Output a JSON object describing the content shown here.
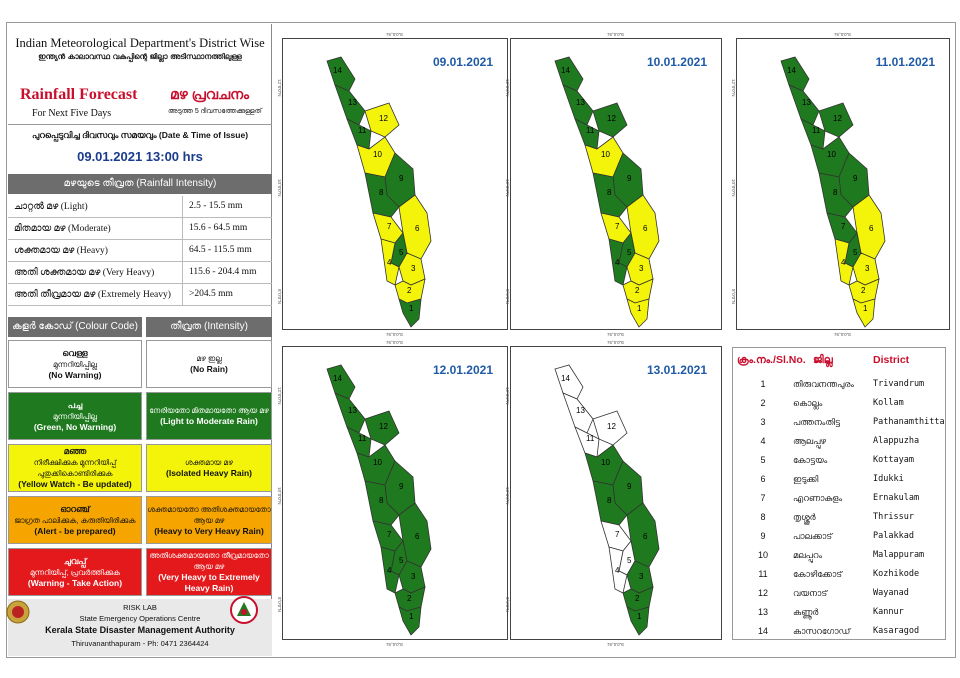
{
  "header": {
    "line1": "Indian Meteorological Department's District Wise",
    "line1_ml": "ഇന്ത്യൻ കാലാവസ്ഥ വകുപ്പിന്റെ ജില്ലാ അടിസ്ഥാനത്തിലുള്ള",
    "title_en": "Rainfall Forecast",
    "subtitle_en": "For Next Five Days",
    "title_ml": "മഴ പ്രവചനം",
    "subtitle_ml": "അടുത്ത 5 ദിവസത്തേക്കുള്ളത്",
    "issue_label": "പുറപ്പെടുവിച്ച ദിവസവും സമയവും (Date & Time of Issue)",
    "issue_value": "09.01.2021   13:00 hrs"
  },
  "intensity": {
    "heading": "മഴയുടെ തീവ്രത (Rainfall Intensity)",
    "rows": [
      {
        "label": "ചാറ്റൽ മഴ (Light)",
        "range": "2.5 - 15.5 mm"
      },
      {
        "label": "മിതമായ മഴ (Moderate)",
        "range": "15.6 - 64.5 mm"
      },
      {
        "label": "ശക്തമായ മഴ (Heavy)",
        "range": "64.5 - 115.5 mm"
      },
      {
        "label": "അതി ശക്തമായ മഴ (Very Heavy)",
        "range": "115.6 - 204.4 mm"
      },
      {
        "label": "അതി തീവ്രമായ മഴ (Extremely Heavy)",
        "range": ">204.5 mm"
      }
    ]
  },
  "legend": {
    "colour_heading": "കളർ കോഡ് (Colour Code)",
    "intensity_heading": "തീവ്രത (Intensity)",
    "rows": [
      {
        "colour": "#ffffff",
        "text": "#111111",
        "c_ml1": "വെള്ള",
        "c_ml2": "മുന്നറിയിപ്പില്ല",
        "c_en": "(No Warning)",
        "i_ml": "മഴ ഇല്ല",
        "i_en": "(No Rain)"
      },
      {
        "colour": "#1f7a1f",
        "text": "#ffffff",
        "c_ml1": "പച്ച",
        "c_ml2": "മുന്നറിയിപ്പില്ല",
        "c_en": "(Green, No Warning)",
        "i_ml": "നേരിയതോ മിതമായതോ ആയ മഴ",
        "i_en": "(Light to Moderate Rain)"
      },
      {
        "colour": "#f4f40a",
        "text": "#111111",
        "c_ml1": "മഞ്ഞ",
        "c_ml2": "നിരീക്ഷിക്കുക മുന്നറിയിപ്പ് പുതുക്കികൊണ്ടിരിക്കുക",
        "c_en": "(Yellow Watch - Be updated)",
        "i_ml": "ശക്തമായ മഴ",
        "i_en": "(Isolated Heavy Rain)"
      },
      {
        "colour": "#f5a400",
        "text": "#111111",
        "c_ml1": "ഓറഞ്ച്",
        "c_ml2": "ജാഗ്രത പാലിക്കുക, കരുതിയിരിക്കുക",
        "c_en": "(Alert - be prepared)",
        "i_ml": "ശക്തമായതോ അതിശക്തമായതോ ആയ മഴ",
        "i_en": "(Heavy to Very Heavy Rain)"
      },
      {
        "colour": "#e3191c",
        "text": "#ffffff",
        "c_ml1": "ചുവപ്പ്",
        "c_ml2": "മുന്നറിയിപ്പ്, പ്രവർത്തിക്കുക",
        "c_en": "(Warning - Take Action)",
        "i_ml": "അതിശക്തമായതോ തീവ്രമായതോ ആയ മഴ",
        "i_en": "(Very Heavy to Extremely Heavy Rain)"
      }
    ]
  },
  "footer": {
    "line1": "RISK LAB",
    "line2": "State Emergency Operations Centre",
    "line3": "Kerala State Disaster Management Authority",
    "line4": "Thiruvananthapuram - Ph: 0471 2364424"
  },
  "maps": [
    {
      "date": "09.01.2021",
      "yellow": [
        12,
        10,
        7,
        6,
        4,
        3,
        2
      ]
    },
    {
      "date": "10.01.2021",
      "yellow": [
        10,
        7,
        6,
        3,
        2,
        1
      ]
    },
    {
      "date": "11.01.2021",
      "yellow": [
        6,
        4,
        3,
        2,
        1
      ]
    },
    {
      "date": "12.01.2021",
      "yellow": []
    },
    {
      "date": "13.01.2021",
      "white": [
        14,
        13,
        12,
        11,
        7,
        5,
        4
      ]
    }
  ],
  "map_coords": {
    "top": "76°0'0\"E",
    "bottom": "76°0'0\"E",
    "lat_top": "12°0'0\"N",
    "lat_mid": "10°0'0\"N",
    "lat_bot": "8°0'0\"N"
  },
  "colors": {
    "green": "#1f7a1f",
    "yellow": "#f4f40a",
    "white": "#ffffff",
    "red_text": "#c8102e",
    "blue_text": "#1f5aa6"
  },
  "district_table": {
    "h_no": "ക്രം.നം./Sl.No.",
    "h_ml": "ജില്ല",
    "h_en": "District",
    "rows": [
      {
        "no": "1",
        "ml": "തിരുവനന്തപുരം",
        "en": "Trivandrum"
      },
      {
        "no": "2",
        "ml": "കൊല്ലം",
        "en": "Kollam"
      },
      {
        "no": "3",
        "ml": "പത്തനംതിട്ട",
        "en": "Pathanamthitta"
      },
      {
        "no": "4",
        "ml": "ആലപ്പുഴ",
        "en": "Alappuzha"
      },
      {
        "no": "5",
        "ml": "കോട്ടയം",
        "en": "Kottayam"
      },
      {
        "no": "6",
        "ml": "ഇടുക്കി",
        "en": "Idukki"
      },
      {
        "no": "7",
        "ml": "എറണാകുളം",
        "en": "Ernakulam"
      },
      {
        "no": "8",
        "ml": "തൃശ്ശൂർ",
        "en": "Thrissur"
      },
      {
        "no": "9",
        "ml": "പാലക്കാട്",
        "en": "Palakkad"
      },
      {
        "no": "10",
        "ml": "മലപ്പുറം",
        "en": "Malappuram"
      },
      {
        "no": "11",
        "ml": "കോഴിക്കോട്",
        "en": "Kozhikode"
      },
      {
        "no": "12",
        "ml": "വയനാട്",
        "en": "Wayanad"
      },
      {
        "no": "13",
        "ml": "കണ്ണൂർ",
        "en": "Kannur"
      },
      {
        "no": "14",
        "ml": "കാസറഗോഡ്",
        "en": "Kasaragod"
      }
    ]
  }
}
